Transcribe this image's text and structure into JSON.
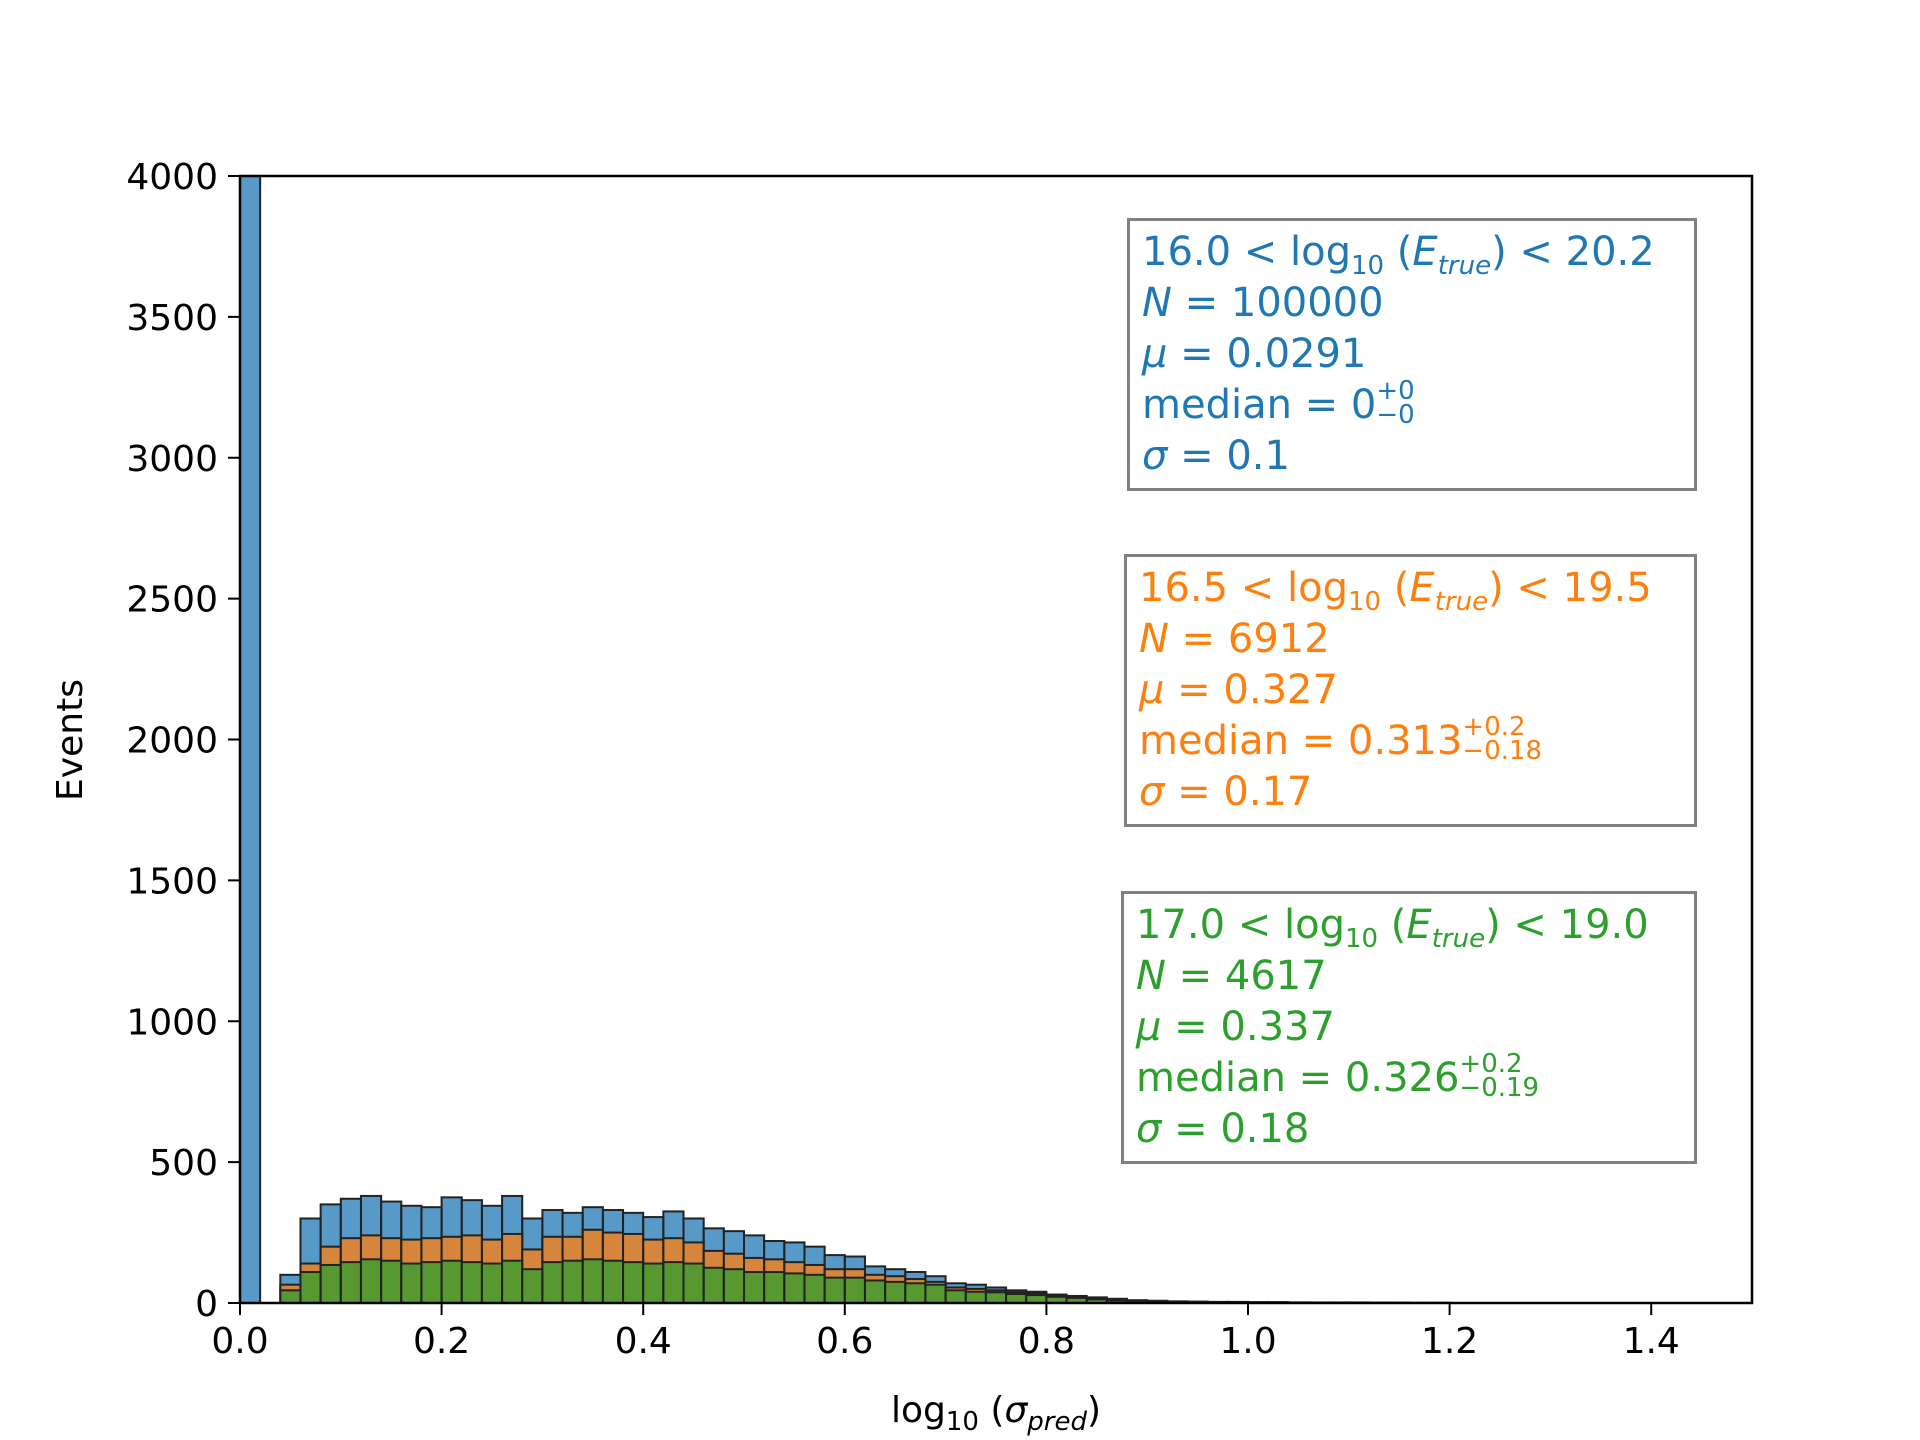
{
  "chart_data": {
    "type": "bar",
    "xlabel": {
      "main": "log",
      "sub": "10",
      "open": " (",
      "sym": "σ",
      "symsub": "pred",
      "close": ")"
    },
    "ylabel": "Events",
    "xlim": [
      0.0,
      1.5
    ],
    "ylim": [
      0,
      4000
    ],
    "xticks": [
      "0.0",
      "0.2",
      "0.4",
      "0.6",
      "0.8",
      "1.0",
      "1.2",
      "1.4"
    ],
    "yticks": [
      "0",
      "500",
      "1000",
      "1500",
      "2000",
      "2500",
      "3000",
      "3500",
      "4000"
    ],
    "bin_width": 0.02,
    "series": [
      {
        "color": "#1f77b4",
        "bins_start": 0.0,
        "values": [
          4000,
          0,
          100,
          300,
          350,
          370,
          380,
          360,
          345,
          340,
          375,
          365,
          345,
          380,
          300,
          330,
          320,
          340,
          330,
          320,
          305,
          325,
          300,
          265,
          255,
          240,
          220,
          215,
          200,
          170,
          165,
          130,
          120,
          110,
          95,
          70,
          65,
          55,
          45,
          40,
          30,
          25,
          20,
          15,
          10,
          8,
          6,
          5,
          4,
          4,
          3,
          3,
          2,
          2,
          2,
          2,
          1,
          1,
          1,
          1,
          0,
          0,
          0,
          0,
          0,
          0,
          0,
          0,
          0,
          0,
          0,
          0,
          0,
          0,
          0
        ]
      },
      {
        "color": "#ff7f0e",
        "bins_start": 0.0,
        "values": [
          0,
          0,
          65,
          140,
          200,
          230,
          240,
          230,
          225,
          230,
          235,
          240,
          225,
          245,
          190,
          235,
          235,
          260,
          250,
          245,
          225,
          230,
          215,
          185,
          175,
          160,
          155,
          145,
          135,
          120,
          120,
          100,
          95,
          85,
          75,
          55,
          50,
          45,
          38,
          34,
          25,
          20,
          15,
          10,
          8,
          6,
          5,
          4,
          3,
          3,
          2,
          2,
          2,
          1,
          1,
          1,
          1,
          1,
          0,
          0,
          0,
          0,
          0,
          0,
          0,
          0,
          0,
          0,
          0,
          0,
          0,
          0,
          0,
          0,
          0
        ]
      },
      {
        "color": "#2ca02c",
        "bins_start": 0.0,
        "values": [
          0,
          0,
          45,
          110,
          135,
          145,
          155,
          150,
          140,
          145,
          150,
          145,
          140,
          150,
          120,
          145,
          150,
          155,
          150,
          145,
          140,
          145,
          140,
          125,
          120,
          110,
          110,
          105,
          100,
          90,
          90,
          80,
          75,
          70,
          65,
          45,
          40,
          38,
          32,
          28,
          22,
          18,
          13,
          9,
          7,
          5,
          4,
          3,
          3,
          2,
          2,
          2,
          1,
          1,
          1,
          1,
          1,
          0,
          0,
          0,
          0,
          0,
          0,
          0,
          0,
          0,
          0,
          0,
          0,
          0,
          0,
          0,
          0,
          0,
          0
        ]
      }
    ]
  },
  "boxes": [
    {
      "color": "#1f77b4",
      "range_lo": "16.0",
      "log": "log",
      "logsub": "10",
      "e": "E",
      "esub": "true",
      "range_hi": "20.2",
      "n_sym": "N",
      "n_val": "100000",
      "mu_sym": "μ",
      "mu_val": "0.0291",
      "median_label": "median",
      "median_val": "0",
      "median_plus": "+0",
      "median_minus": "−0",
      "sigma_sym": "σ",
      "sigma_val": "0.1"
    },
    {
      "color": "#ff7f0e",
      "range_lo": "16.5",
      "log": "log",
      "logsub": "10",
      "e": "E",
      "esub": "true",
      "range_hi": "19.5",
      "n_sym": "N",
      "n_val": "6912",
      "mu_sym": "μ",
      "mu_val": "0.327",
      "median_label": "median",
      "median_val": "0.313",
      "median_plus": "+0.2",
      "median_minus": "−0.18",
      "sigma_sym": "σ",
      "sigma_val": "0.17"
    },
    {
      "color": "#2ca02c",
      "range_lo": "17.0",
      "log": "log",
      "logsub": "10",
      "e": "E",
      "esub": "true",
      "range_hi": "19.0",
      "n_sym": "N",
      "n_val": "4617",
      "mu_sym": "μ",
      "mu_val": "0.337",
      "median_label": "median",
      "median_val": "0.326",
      "median_plus": "+0.2",
      "median_minus": "−0.19",
      "sigma_sym": "σ",
      "sigma_val": "0.18"
    }
  ]
}
